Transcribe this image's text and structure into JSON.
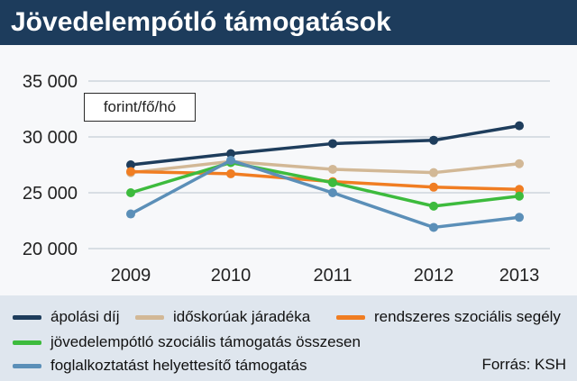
{
  "header": {
    "title": "Jövedelempótló támogatások"
  },
  "chart_data": {
    "type": "line",
    "title": "Jövedelempótló támogatások",
    "unit_label": "forint/fő/hó",
    "x": [
      "2009",
      "2010",
      "2011",
      "2012",
      "2013"
    ],
    "ylim": [
      20000,
      35000
    ],
    "yticks": [
      {
        "value": 35000,
        "label": "35 000"
      },
      {
        "value": 30000,
        "label": "30 000"
      },
      {
        "value": 25000,
        "label": "25 000"
      },
      {
        "value": 20000,
        "label": "20 000"
      }
    ],
    "grid": true,
    "legend_position": "bottom",
    "series": [
      {
        "name": "ápolási díj",
        "color": "#1e3d5c",
        "values": [
          27500,
          28500,
          29400,
          29700,
          31000
        ]
      },
      {
        "name": "időskorúak járadéka",
        "color": "#d2b896",
        "values": [
          26800,
          27800,
          27100,
          26800,
          27600
        ]
      },
      {
        "name": "rendszeres szociális segély",
        "color": "#f07d22",
        "values": [
          26900,
          26700,
          26000,
          25500,
          25300
        ]
      },
      {
        "name": "jövedelempótló szociális támogatás összesen",
        "color": "#3dbb3d",
        "values": [
          25000,
          27700,
          25900,
          23800,
          24700
        ]
      },
      {
        "name": "foglalkoztatást helyettesítő támogatás",
        "color": "#5b8fb8",
        "values": [
          23100,
          27900,
          25000,
          21900,
          22800
        ]
      }
    ]
  },
  "source": "Forrás: KSH"
}
